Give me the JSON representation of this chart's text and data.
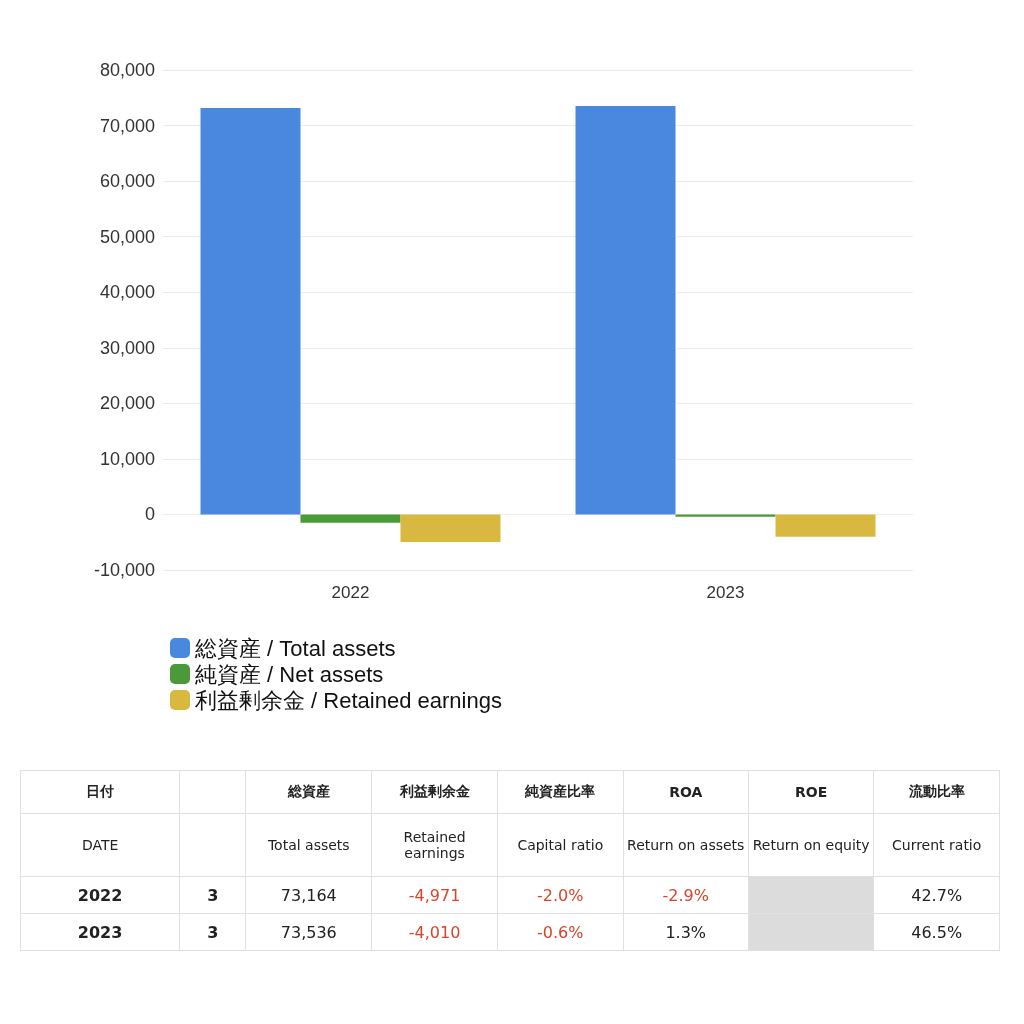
{
  "chart_data": [
    {
      "type": "bar",
      "categories": [
        "2022",
        "2023"
      ],
      "series": [
        {
          "name": "総資産 / Total assets",
          "color": "#4a88e0",
          "values": [
            73164,
            73536
          ]
        },
        {
          "name": "純資産 / Net assets",
          "color": "#4a9a3a",
          "values": [
            -1500,
            -400
          ]
        },
        {
          "name": "利益剰余金 / Retained earnings",
          "color": "#d9b840",
          "values": [
            -4971,
            -4010
          ]
        }
      ],
      "ylim": [
        -10000,
        80000
      ],
      "yticks": [
        {
          "value": -10000,
          "label": "-10,000"
        },
        0,
        {
          "value": 10000,
          "label": "10,000"
        },
        {
          "value": 20000,
          "label": "20,000"
        },
        {
          "value": 30000,
          "label": "30,000"
        },
        {
          "value": 40000,
          "label": "40,000"
        },
        {
          "value": 50000,
          "label": "50,000"
        },
        {
          "value": 60000,
          "label": "60,000"
        },
        {
          "value": 70000,
          "label": "70,000"
        },
        {
          "value": 80000,
          "label": "80,000"
        }
      ],
      "grid": "y",
      "legend": "bottom left"
    },
    {
      "type": "other",
      "categories": [
        "日付",
        null,
        "総資産",
        "利益剰余金",
        "純資産比率",
        "ROA",
        "ROE",
        "流動比率"
      ],
      "cell_labels": [
        [
          "DATE",
          null,
          "Total assets",
          "Retained earnings",
          "Capital ratio",
          "Return on assets",
          "Return on equity",
          "Current ratio"
        ],
        [
          "2022",
          "3",
          "73,164",
          "-4,971",
          "-2.0%",
          "-2.9%",
          null,
          "42.7%"
        ],
        [
          "2023",
          "3",
          "73,536",
          "-4,010",
          "-0.6%",
          "1.3%",
          null,
          "46.5%"
        ]
      ]
    }
  ]
}
